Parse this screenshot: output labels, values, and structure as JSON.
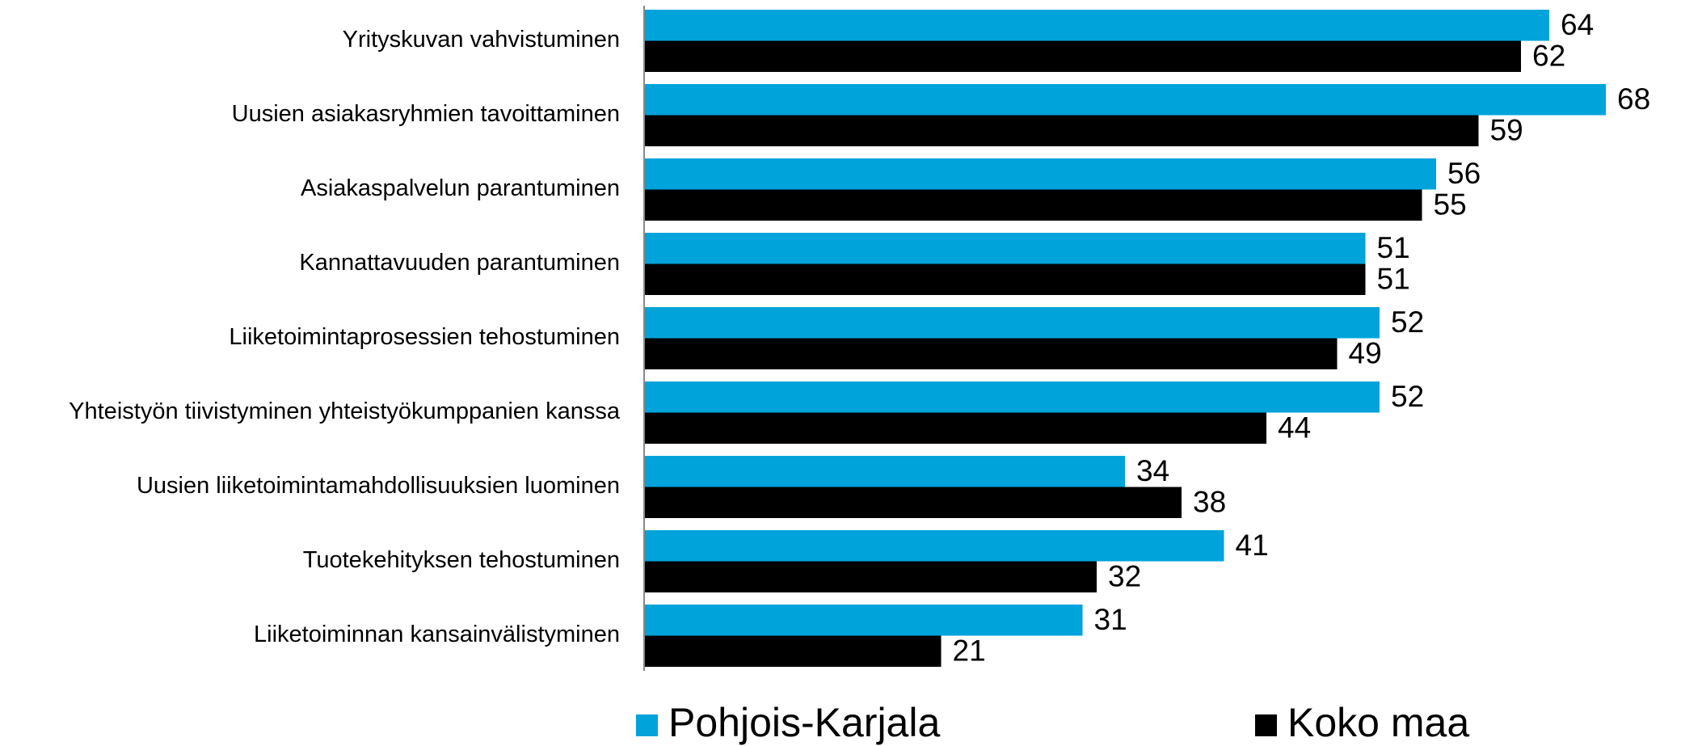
{
  "chart_data": {
    "type": "barh",
    "categories": [
      "Yrityskuvan vahvistuminen",
      "Uusien asiakasryhmien tavoittaminen",
      "Asiakaspalvelun parantuminen",
      "Kannattavuuden parantuminen",
      "Liiketoimintaprosessien tehostuminen",
      "Yhteistyön tiivistyminen yhteistyökumppanien kanssa",
      "Uusien liiketoimintamahdollisuuksien luominen",
      "Tuotekehityksen tehostuminen",
      "Liiketoiminnan kansainvälistyminen"
    ],
    "series": [
      {
        "name": "Pohjois-Karjala",
        "color": "#00a3da",
        "values": [
          64,
          68,
          56,
          51,
          52,
          52,
          34,
          41,
          31
        ]
      },
      {
        "name": "Koko maa",
        "color": "#000000",
        "values": [
          62,
          59,
          55,
          51,
          49,
          44,
          38,
          32,
          21
        ]
      }
    ],
    "legend": "bottom"
  }
}
